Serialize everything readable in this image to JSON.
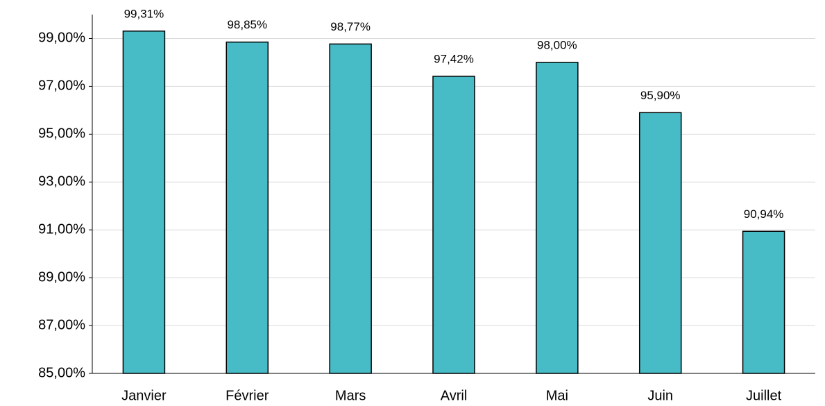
{
  "chart_data": {
    "type": "bar",
    "categories": [
      "Janvier",
      "Février",
      "Mars",
      "Avril",
      "Mai",
      "Juin",
      "Juillet"
    ],
    "values": [
      99.31,
      98.85,
      98.77,
      97.42,
      98.0,
      95.9,
      90.94
    ],
    "value_labels": [
      "99,31%",
      "98,85%",
      "98,77%",
      "97,42%",
      "98,00%",
      "95,90%",
      "90,94%"
    ],
    "color": "#48bcc6",
    "ylim": [
      85,
      100
    ],
    "yticks": [
      {
        "value": 85,
        "label": "85,00%"
      },
      {
        "value": 87,
        "label": "87,00%"
      },
      {
        "value": 89,
        "label": "89,00%"
      },
      {
        "value": 91,
        "label": "91,00%"
      },
      {
        "value": 93,
        "label": "93,00%"
      },
      {
        "value": 95,
        "label": "95,00%"
      },
      {
        "value": 97,
        "label": "97,00%"
      },
      {
        "value": 99,
        "label": "99,00%"
      }
    ],
    "grid": true
  }
}
